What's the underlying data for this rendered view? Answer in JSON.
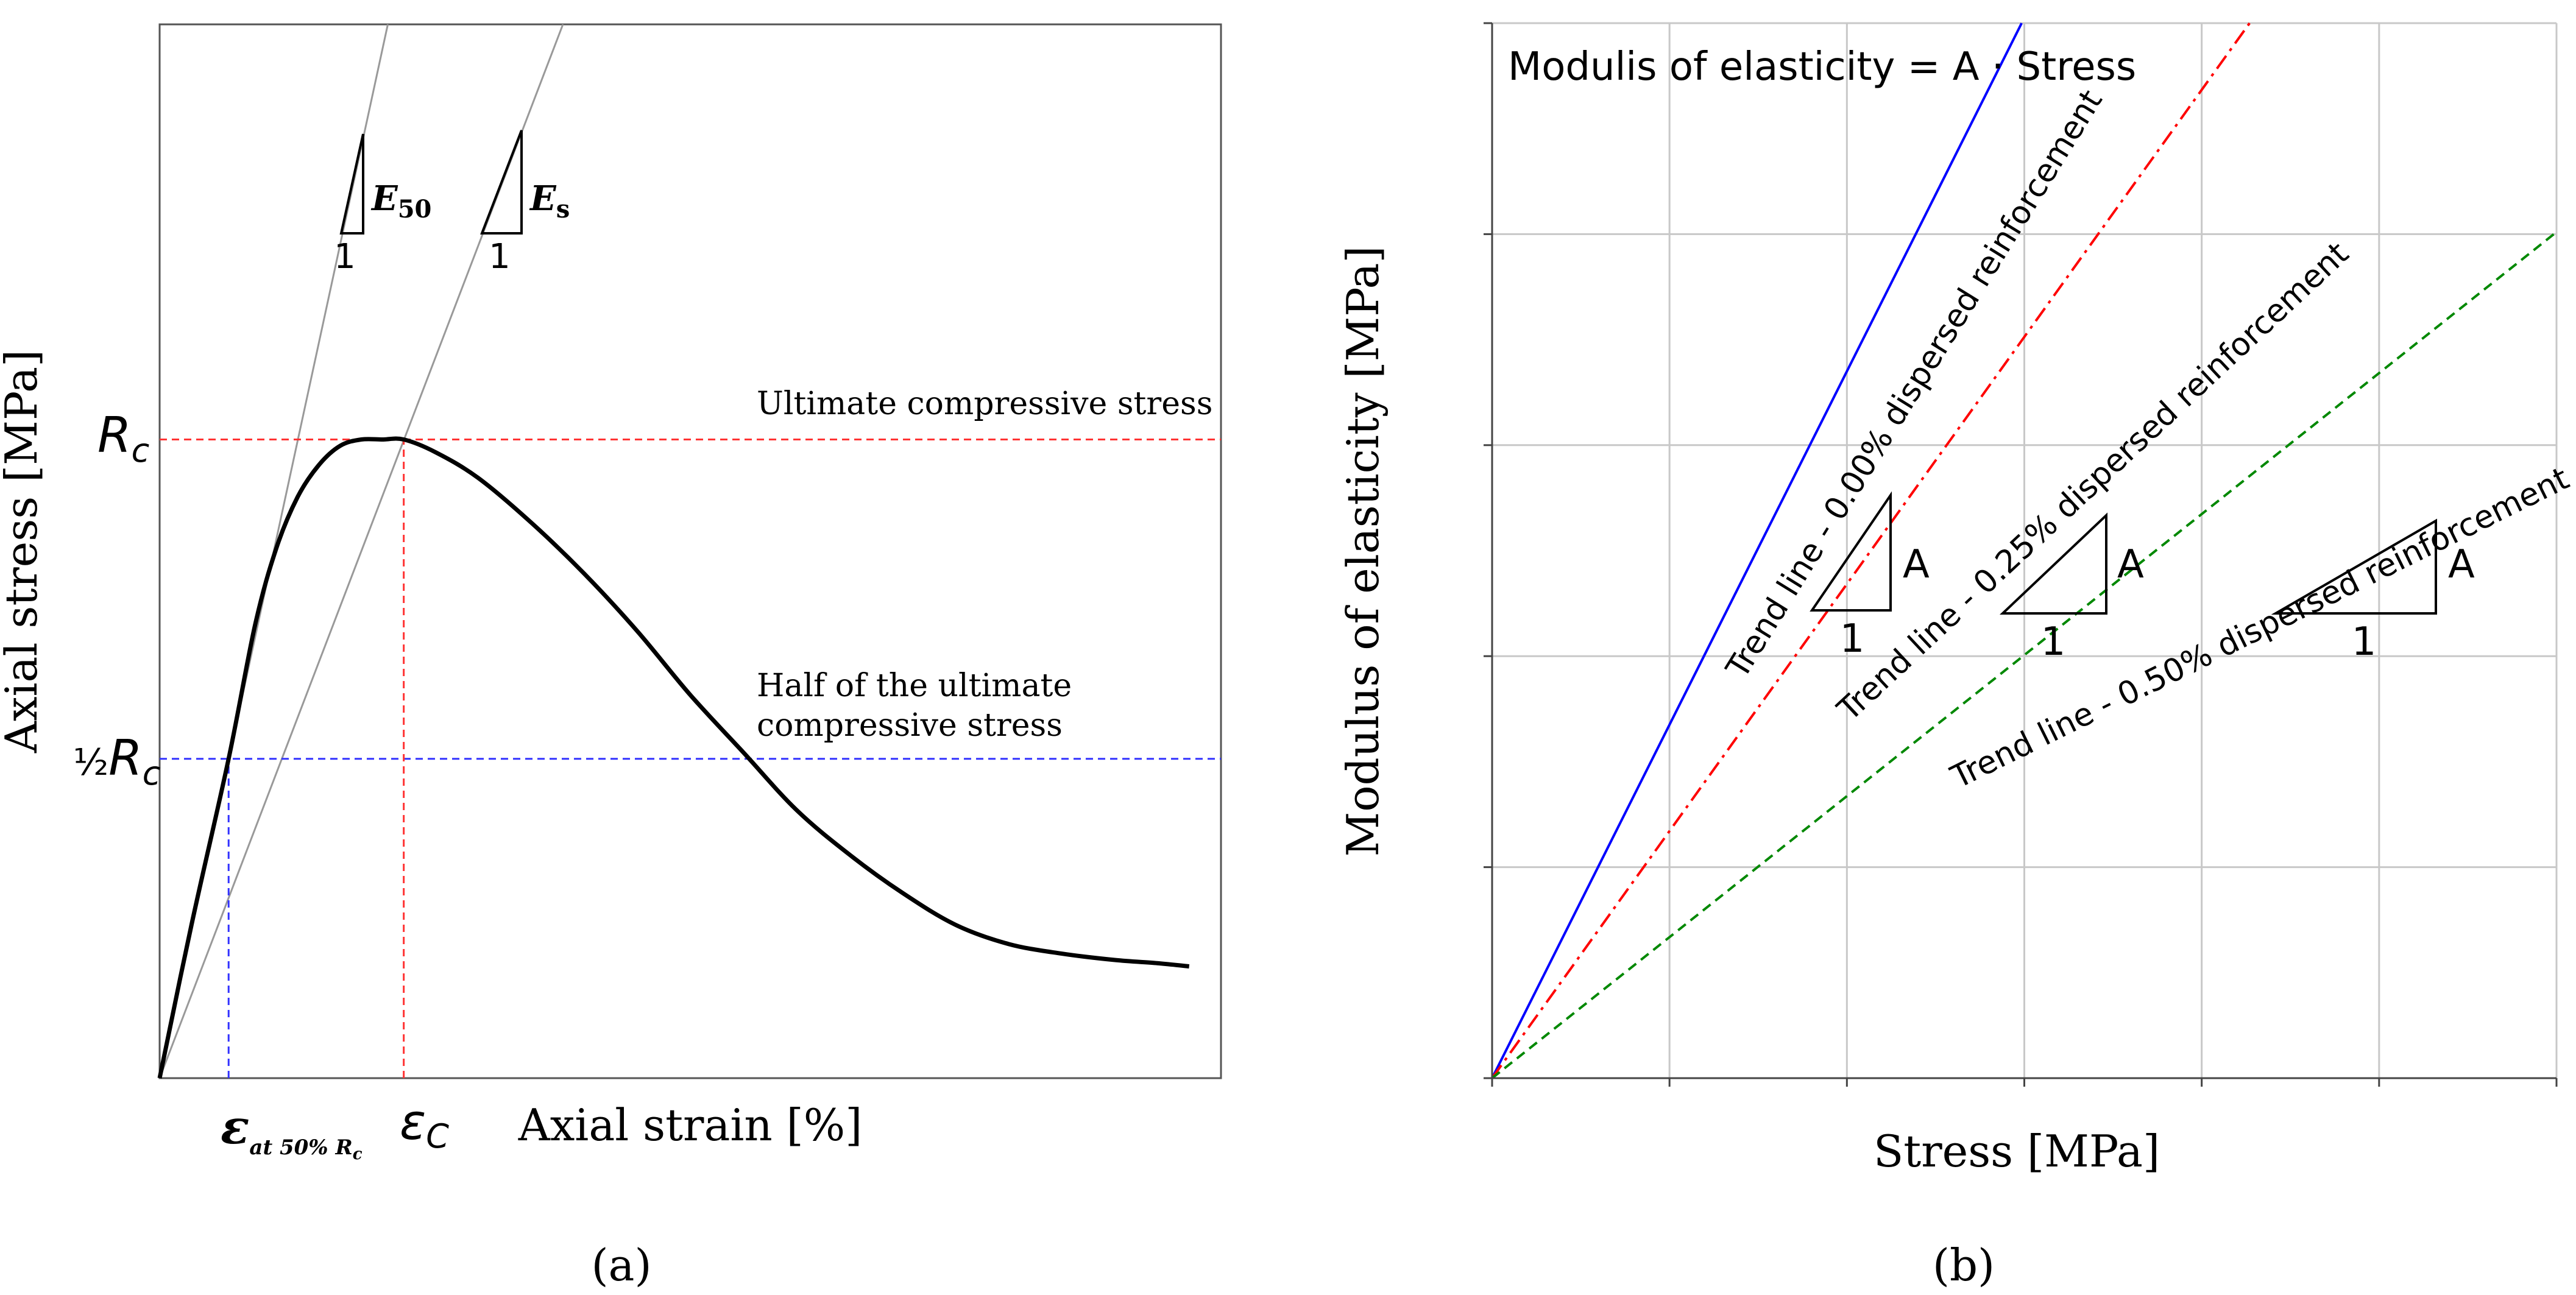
{
  "chart_data": [
    {
      "panel": "(a)",
      "type": "line",
      "xlabel": "Axial strain [%]",
      "ylabel": "Axial stress [MPa]",
      "grid": false,
      "x_tick_labels": [
        {
          "symbol": "ε",
          "sub": "at 50% R",
          "sub2": "c",
          "value": 0.065
        },
        {
          "symbol": "ε",
          "sub": "C",
          "value": 0.23
        }
      ],
      "y_tick_labels": [
        {
          "prefix": "½",
          "symbol": "R",
          "sub": "c",
          "value": 0.5
        },
        {
          "symbol": "R",
          "sub": "c",
          "value": 1.0
        }
      ],
      "xlim": [
        0,
        1.0
      ],
      "ylim": [
        0,
        1.65
      ],
      "series": [
        {
          "name": "stress-strain curve",
          "color": "#000000",
          "x": [
            0.0,
            0.03,
            0.065,
            0.09,
            0.11,
            0.13,
            0.15,
            0.17,
            0.19,
            0.21,
            0.23,
            0.26,
            0.3,
            0.35,
            0.4,
            0.45,
            0.5,
            0.55,
            0.6,
            0.65,
            0.7,
            0.75,
            0.8,
            0.85,
            0.9,
            0.94,
            0.97
          ],
          "y": [
            0.0,
            0.24,
            0.5,
            0.71,
            0.83,
            0.91,
            0.96,
            0.99,
            1.0,
            1.0,
            1.0,
            0.98,
            0.94,
            0.87,
            0.79,
            0.7,
            0.6,
            0.51,
            0.42,
            0.35,
            0.29,
            0.24,
            0.21,
            0.195,
            0.185,
            0.18,
            0.175
          ]
        }
      ],
      "reference_lines": [
        {
          "name": "E50 secant",
          "color": "#999999",
          "from": [
            0.0,
            0.0
          ],
          "to": [
            0.215,
            1.65
          ]
        },
        {
          "name": "Es secant",
          "color": "#999999",
          "from": [
            0.0,
            0.0
          ],
          "to": [
            0.38,
            1.65
          ]
        },
        {
          "name": "Rc level",
          "color": "#ff3333",
          "dash": true,
          "y": 1.0
        },
        {
          "name": "half Rc level",
          "color": "#3333ff",
          "dash": true,
          "y": 0.5
        },
        {
          "name": "eps at 50% Rc",
          "color": "#3333ff",
          "dash": true,
          "x": 0.065
        },
        {
          "name": "eps C",
          "color": "#ff3333",
          "dash": true,
          "x": 0.23
        }
      ],
      "annotations": {
        "ultimate": "Ultimate compressive stress",
        "half_line1": "Half of the ultimate",
        "half_line2": "compressive stress",
        "e50_label": "E",
        "e50_sub": "50",
        "es_label": "E",
        "es_sub": "s",
        "slope_one": "1"
      },
      "caption": "(a)"
    },
    {
      "panel": "(b)",
      "type": "line",
      "xlabel": "Stress [MPa]",
      "ylabel": "Modulus of elasticity [MPa]",
      "title": "Modulis of elasticity = A · Stress",
      "grid": true,
      "xlim": [
        0,
        6
      ],
      "ylim": [
        0,
        5
      ],
      "x_ticks": [
        0,
        1,
        2,
        3,
        4,
        5,
        6
      ],
      "y_ticks": [
        0,
        1,
        2,
        3,
        4,
        5
      ],
      "series": [
        {
          "name": "Trend line - 0.00% dispersed reinforcement",
          "color": "#0000ff",
          "style": "solid",
          "slope": 1.675,
          "x": [
            0,
            2.985
          ],
          "y": [
            0,
            5.0
          ]
        },
        {
          "name": "Trend line - 0.25% dispersed reinforcement",
          "color": "#ff0000",
          "style": "dashdot",
          "slope": 1.17,
          "x": [
            0,
            4.27
          ],
          "y": [
            0,
            5.0
          ]
        },
        {
          "name": "Trend line - 0.50% dispersed reinforcement",
          "color": "#008800",
          "style": "dashed",
          "slope": 0.6683,
          "x": [
            0,
            6.0
          ],
          "y": [
            0,
            4.01
          ]
        }
      ],
      "slope_triangles": [
        {
          "run_label": "1",
          "rise_label": "A",
          "x0": 1.8,
          "x1": 2.24
        },
        {
          "run_label": "1",
          "rise_label": "A",
          "x0": 2.87,
          "x1": 3.43
        },
        {
          "run_label": "1",
          "rise_label": "A",
          "x0": 4.4,
          "x1": 5.3
        }
      ],
      "caption": "(b)"
    }
  ]
}
